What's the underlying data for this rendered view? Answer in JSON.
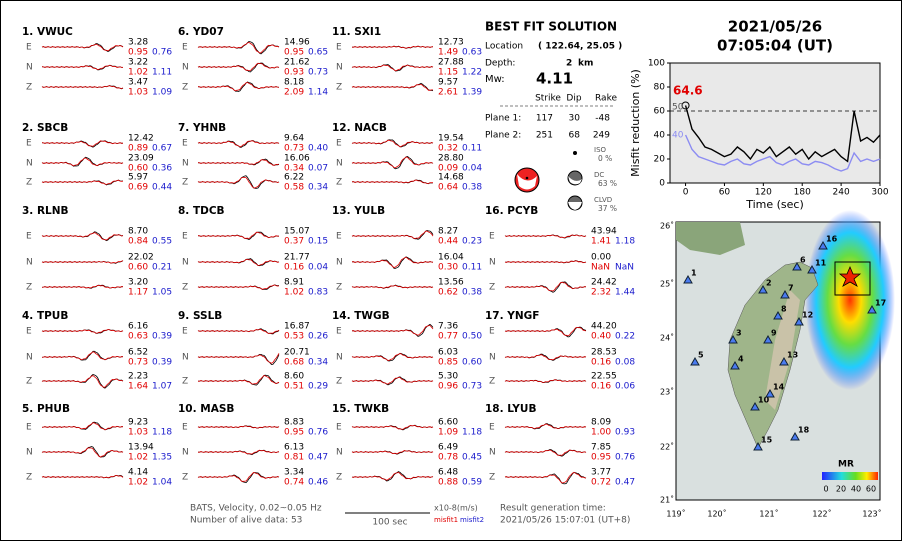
{
  "components": [
    "E",
    "N",
    "Z"
  ],
  "stations": [
    {
      "label": "1.  VWUC",
      "data": [
        [
          "3.28",
          "0.95",
          "0.76"
        ],
        [
          "3.22",
          "1.02",
          "1.11"
        ],
        [
          "3.47",
          "1.03",
          "1.09"
        ]
      ]
    },
    {
      "label": "2.  SBCB",
      "data": [
        [
          "12.42",
          "0.89",
          "0.67"
        ],
        [
          "23.09",
          "0.60",
          "0.36"
        ],
        [
          "5.97",
          "0.69",
          "0.44"
        ]
      ]
    },
    {
      "label": "3.  RLNB",
      "data": [
        [
          "8.70",
          "0.84",
          "0.55"
        ],
        [
          "22.02",
          "0.60",
          "0.21"
        ],
        [
          "3.20",
          "1.17",
          "1.05"
        ]
      ]
    },
    {
      "label": "4.  TPUB",
      "data": [
        [
          "6.16",
          "0.63",
          "0.39"
        ],
        [
          "6.52",
          "0.73",
          "0.39"
        ],
        [
          "2.23",
          "1.64",
          "1.07"
        ]
      ]
    },
    {
      "label": "5.  PHUB",
      "data": [
        [
          "9.23",
          "1.03",
          "1.18"
        ],
        [
          "13.94",
          "1.02",
          "1.35"
        ],
        [
          "4.14",
          "1.02",
          "1.04"
        ]
      ]
    },
    {
      "label": "6.  YD07",
      "data": [
        [
          "14.96",
          "0.95",
          "0.65"
        ],
        [
          "21.62",
          "0.93",
          "0.73"
        ],
        [
          "8.18",
          "2.09",
          "1.14"
        ]
      ]
    },
    {
      "label": "7.  YHNB",
      "data": [
        [
          "9.64",
          "0.73",
          "0.40"
        ],
        [
          "16.06",
          "0.34",
          "0.07"
        ],
        [
          "6.22",
          "0.58",
          "0.34"
        ]
      ]
    },
    {
      "label": "8.  TDCB",
      "data": [
        [
          "15.07",
          "0.37",
          "0.15"
        ],
        [
          "21.77",
          "0.16",
          "0.04"
        ],
        [
          "8.91",
          "1.02",
          "0.83"
        ]
      ]
    },
    {
      "label": "9.  SSLB",
      "data": [
        [
          "16.87",
          "0.53",
          "0.26"
        ],
        [
          "20.71",
          "0.68",
          "0.34"
        ],
        [
          "8.60",
          "0.51",
          "0.29"
        ]
      ]
    },
    {
      "label": "10. MASB",
      "data": [
        [
          "8.83",
          "0.95",
          "0.76"
        ],
        [
          "6.13",
          "0.81",
          "0.47"
        ],
        [
          "3.34",
          "0.74",
          "0.46"
        ]
      ]
    },
    {
      "label": "11. SXI1",
      "data": [
        [
          "12.73",
          "1.49",
          "0.63"
        ],
        [
          "27.88",
          "1.15",
          "1.22"
        ],
        [
          "9.57",
          "2.61",
          "1.39"
        ]
      ]
    },
    {
      "label": "12. NACB",
      "data": [
        [
          "19.54",
          "0.32",
          "0.11"
        ],
        [
          "28.80",
          "0.09",
          "0.04"
        ],
        [
          "14.68",
          "0.64",
          "0.38"
        ]
      ]
    },
    {
      "label": "13. YULB",
      "data": [
        [
          "8.27",
          "0.44",
          "0.23"
        ],
        [
          "16.04",
          "0.30",
          "0.11"
        ],
        [
          "13.56",
          "0.62",
          "0.38"
        ]
      ]
    },
    {
      "label": "14. TWGB",
      "data": [
        [
          "7.36",
          "0.77",
          "0.50"
        ],
        [
          "6.03",
          "0.85",
          "0.60"
        ],
        [
          "5.30",
          "0.96",
          "0.73"
        ]
      ]
    },
    {
      "label": "15. TWKB",
      "data": [
        [
          "6.60",
          "1.09",
          "1.18"
        ],
        [
          "6.49",
          "0.78",
          "0.45"
        ],
        [
          "6.48",
          "0.88",
          "0.59"
        ]
      ]
    },
    {
      "label": "16. PCYB",
      "data": [
        [
          "43.94",
          "1.41",
          "1.18"
        ],
        [
          "0.00",
          "NaN",
          "NaN"
        ],
        [
          "24.42",
          "2.32",
          "1.44"
        ]
      ]
    },
    {
      "label": "17. YNGF",
      "data": [
        [
          "44.20",
          "0.40",
          "0.22"
        ],
        [
          "28.53",
          "0.16",
          "0.08"
        ],
        [
          "22.55",
          "0.16",
          "0.06"
        ]
      ]
    },
    {
      "label": "18. LYUB",
      "data": [
        [
          "8.09",
          "1.00",
          "0.93"
        ],
        [
          "7.85",
          "0.95",
          "0.76"
        ],
        [
          "3.77",
          "0.72",
          "0.47"
        ]
      ]
    }
  ],
  "best_fit": {
    "title": "BEST FIT SOLUTION",
    "location_label": "Location",
    "location": "( 122.64, 25.05 )",
    "depth_label": "Depth:",
    "depth": "2",
    "depth_unit": "km",
    "mw_label": "Mw:",
    "mw": "4.11",
    "headers": [
      "Strike",
      "Dip",
      "Rake"
    ],
    "planes": [
      {
        "label": "Plane 1:",
        "values": [
          "117",
          "30",
          "-48"
        ]
      },
      {
        "label": "Plane 2:",
        "values": [
          "251",
          "68",
          "249"
        ]
      }
    ],
    "parts": [
      {
        "label": "ISO",
        "value": "0 %"
      },
      {
        "label": "DC",
        "value": "63 %"
      },
      {
        "label": "CLVD",
        "value": "37 %"
      }
    ]
  },
  "event": {
    "date": "2021/05/26",
    "time": "07:05:04  (UT)"
  },
  "chart_data": {
    "type": "line",
    "xlabel": "Time (sec)",
    "ylabel": "Misfit reduction (%)",
    "x": [
      0,
      10,
      20,
      30,
      40,
      50,
      60,
      70,
      80,
      90,
      100,
      110,
      120,
      130,
      140,
      150,
      160,
      170,
      180,
      190,
      200,
      210,
      220,
      230,
      240,
      250,
      260,
      270,
      280,
      290,
      300
    ],
    "series": [
      {
        "color": "#000000",
        "values": [
          64.6,
          45,
          38,
          30,
          28,
          25,
          22,
          24,
          30,
          26,
          20,
          28,
          25,
          30,
          22,
          26,
          30,
          24,
          28,
          20,
          26,
          22,
          25,
          28,
          22,
          18,
          60,
          35,
          38,
          34,
          40
        ]
      },
      {
        "color": "#8c8cf2",
        "values": [
          40,
          28,
          22,
          20,
          18,
          16,
          15,
          18,
          20,
          16,
          15,
          18,
          20,
          22,
          17,
          15,
          18,
          20,
          16,
          15,
          18,
          17,
          15,
          12,
          10,
          12,
          25,
          18,
          20,
          18,
          20
        ]
      }
    ],
    "xlim": [
      -24,
      300
    ],
    "ylim": [
      0,
      100
    ],
    "xticks": [
      0,
      60,
      120,
      180,
      240,
      300
    ],
    "yticks": [
      0,
      20,
      40,
      60,
      80,
      100
    ],
    "hline": 60,
    "annotations": [
      "64.6",
      "50",
      "40"
    ]
  },
  "map": {
    "lon_ticks": [
      "119˚",
      "120˚",
      "121˚",
      "122˚",
      "123˚"
    ],
    "lat_ticks": [
      "26˚",
      "25˚",
      "24˚",
      "23˚",
      "22˚",
      "21˚"
    ],
    "stations": [
      "1",
      "2",
      "3",
      "4",
      "5",
      "6",
      "7",
      "8",
      "9",
      "10",
      "11",
      "12",
      "13",
      "14",
      "15",
      "16",
      "17",
      "18"
    ],
    "colorbar_title": "MR",
    "colorbar_ticks": [
      "0",
      "20",
      "40",
      "60"
    ]
  },
  "footer": {
    "filter": "BATS, Velocity, 0.02~0.05 Hz",
    "alive": "Number of alive data: 53",
    "scale": "100 sec",
    "unit": "x10-8(m/s)",
    "misfit1": "misfit1",
    "misfit2": "misfit2",
    "gen_label": "Result generation time:",
    "gen_time": "2021/05/26 15:07:01 (UT+8)"
  }
}
